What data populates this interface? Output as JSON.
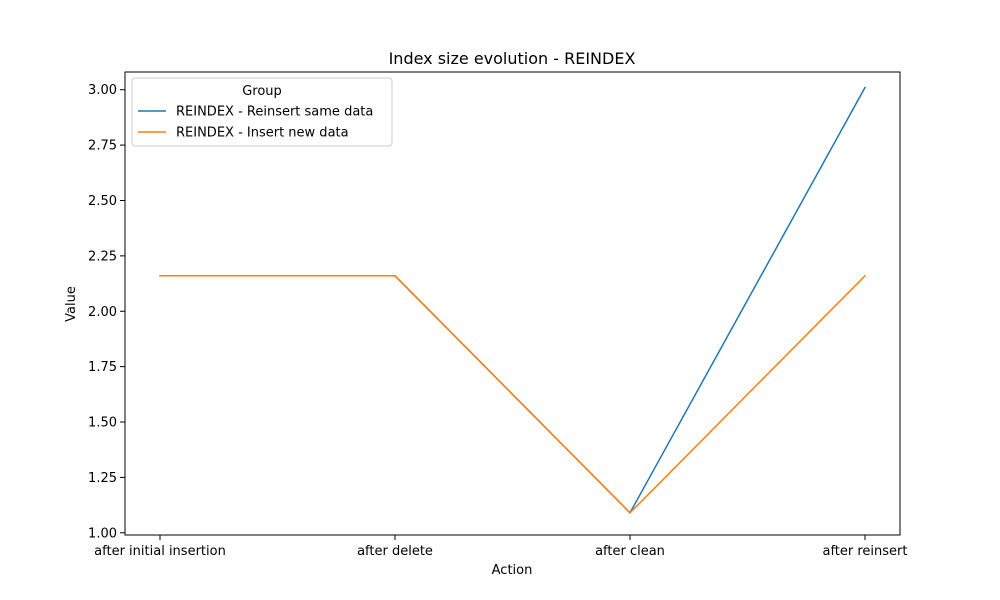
{
  "chart_data": {
    "type": "line",
    "title": "Index size evolution - REINDEX",
    "xlabel": "Action",
    "ylabel": "Value",
    "categories": [
      "after initial insertion",
      "after delete",
      "after clean",
      "after reinsert"
    ],
    "ylim": [
      0.99,
      3.08
    ],
    "yticks": [
      1.0,
      1.25,
      1.5,
      1.75,
      2.0,
      2.25,
      2.5,
      2.75,
      3.0
    ],
    "ytick_labels": [
      "1.00",
      "1.25",
      "1.50",
      "1.75",
      "2.00",
      "2.25",
      "2.50",
      "2.75",
      "3.00"
    ],
    "grid": false,
    "legend": {
      "title": "Group",
      "placement": "upper-left"
    },
    "series": [
      {
        "name": "REINDEX - Reinsert same data",
        "color": "#1f77b4",
        "values": [
          2.16,
          2.16,
          1.09,
          3.01
        ]
      },
      {
        "name": "REINDEX - Insert new data",
        "color": "#ff7f0e",
        "values": [
          2.16,
          2.16,
          1.09,
          2.16
        ]
      }
    ]
  }
}
